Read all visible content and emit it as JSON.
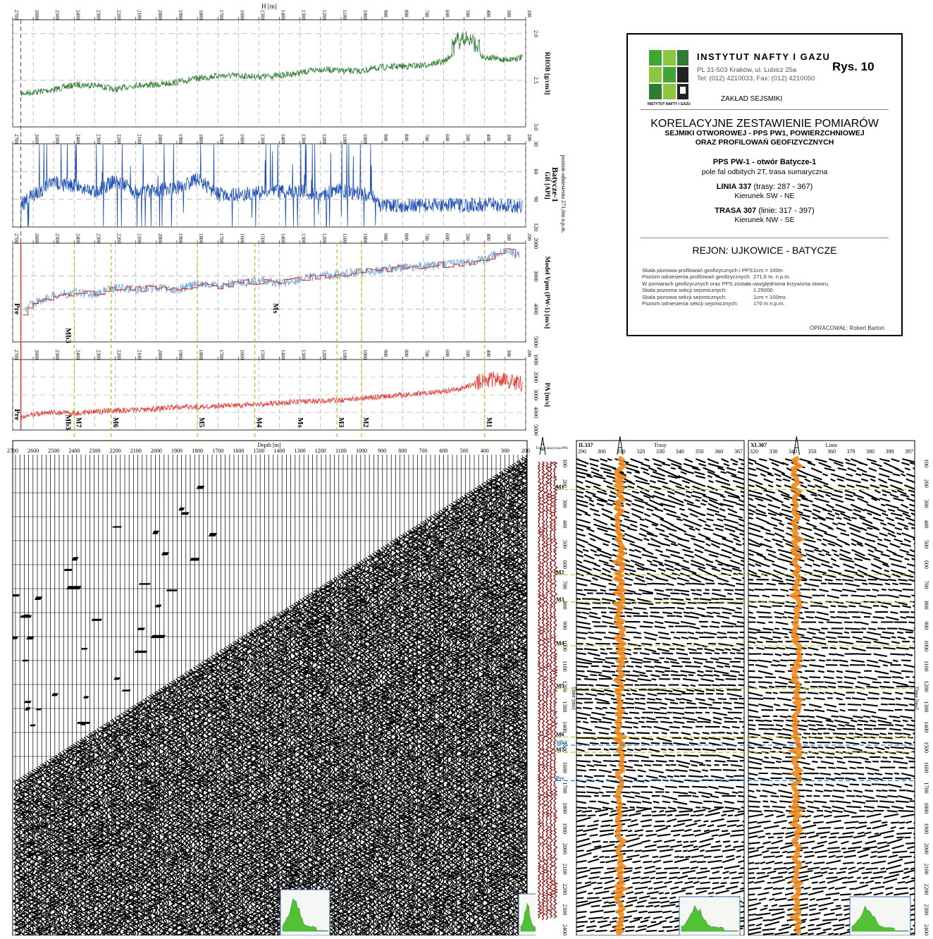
{
  "logs": {
    "h_label": "H [m]",
    "depth_ticks": [
      "2700",
      "2600",
      "2500",
      "2400",
      "2300",
      "2200",
      "2100",
      "2000",
      "1900",
      "1800",
      "1700",
      "1600",
      "1500",
      "1400",
      "1300",
      "1200",
      "1100",
      "1000",
      "900",
      "800",
      "700",
      "600",
      "500",
      "400",
      "300",
      "200"
    ],
    "well_name": "Batycze-1",
    "well_ref": "poziom odniesienia 271,6m n.p.m.",
    "tracks": [
      {
        "key": "rhob",
        "label": "RHOB [g/cm3]",
        "ticks": [
          "2.0",
          "2.5",
          "3.0"
        ],
        "range": [
          1.85,
          3.0
        ],
        "color": "#2e7d32"
      },
      {
        "key": "gr",
        "label": "GR [API]",
        "ticks": [
          "30",
          "60",
          "90",
          "120"
        ],
        "range": [
          30,
          120
        ],
        "color": "#1f4fb5"
      },
      {
        "key": "vp",
        "label": "Model Vpm (PW-1) [m/s]",
        "ticks": [
          "2000",
          "3000",
          "4000",
          "5000"
        ],
        "range": [
          2000,
          5000
        ],
        "color": "#c62828",
        "color2": "#6fa8dc"
      },
      {
        "key": "pa",
        "label": "PA [m/s]",
        "ticks": [
          "1000",
          "2000",
          "3000",
          "4000",
          "5000"
        ],
        "range": [
          1000,
          5000
        ],
        "color": "#e53935"
      }
    ],
    "vp_markers": [
      "Pre",
      "Mb3",
      "Ms"
    ],
    "pa_markers": [
      "Pre",
      "Mb3",
      "M7",
      "M6",
      "M5",
      "M4",
      "Ms",
      "M3",
      "M2",
      "M1"
    ],
    "reflector_depths": {
      "M1": 400,
      "M2": 1000,
      "M3": 1120,
      "M4": 1520,
      "M5": 1800,
      "M6": 2220,
      "M7": 2400
    }
  },
  "seismic": {
    "depth_label": "Depth [m]",
    "depth_ticks": [
      "2700",
      "2600",
      "2500",
      "2400",
      "2300",
      "2200",
      "2100",
      "2000",
      "1900",
      "1800",
      "1700",
      "1600",
      "1500",
      "1400",
      "1300",
      "1200",
      "1100",
      "1000",
      "900",
      "800",
      "700",
      "600",
      "500",
      "400",
      "300",
      "200"
    ],
    "time_label": "Time [ms]",
    "time_ticks": [
      "100",
      "200",
      "300",
      "400",
      "500",
      "600",
      "700",
      "800",
      "900",
      "1000",
      "1100",
      "1200",
      "1300",
      "1400",
      "1500",
      "1600",
      "1700",
      "1800",
      "1900",
      "2000",
      "2100",
      "2200",
      "2300",
      "2400"
    ],
    "trace_label": "Trasa sumaryczna PPS",
    "il_title": "IL337",
    "il_axis": "Trasy",
    "il_ticks": [
      "290",
      "300",
      "310",
      "320",
      "330",
      "340",
      "350",
      "360",
      "367"
    ],
    "xl_title": "XL307",
    "xl_axis": "Linie",
    "xl_ticks": [
      "320",
      "330",
      "340",
      "350",
      "360",
      "370",
      "380",
      "390",
      "397"
    ],
    "horizons": [
      "M1",
      "M2",
      "M3",
      "M4",
      "M5",
      "M6",
      "M7",
      "Mb3",
      "Pre"
    ]
  },
  "colors": {
    "ink": "#000000",
    "rhob": "#2e7d32",
    "gr": "#1f4fb5",
    "vp_model": "#c62828",
    "vp_raw": "#6fa8dc",
    "pa": "#e53935",
    "horizon": "#b8c21a",
    "horizon_blue": "#1a73c9",
    "well_strip": "#8b1a1a",
    "well_overlay": "#f08a1e",
    "histogram": "#52c234"
  },
  "info": {
    "institute": "INSTYTUT NAFTY I GAZU",
    "address": "PL 31-503 Kraków, ul. Lubicz 25a",
    "phone": "Tel: (012) 4210033, Fax: (012) 4210050",
    "logo_caption": "INSTYTUT NAFTY I GAZU",
    "figure": "Rys. 10",
    "department": "ZAKŁAD SEJSMIKI",
    "title": "KORELACYJNE ZESTAWIENIE POMIARÓW",
    "subtitle1": "SEJMIKI OTWOROWEJ - PPS PW1, POWIERZCHNIOWEJ",
    "subtitle2": "ORAZ PROFILOWAŃ GEOFIZYCZNYCH",
    "pps_line1": "PPS PW-1 - otwór Batycze-1",
    "pps_line2": "pole fal odbitych 2T, trasa sumaryczna",
    "linia_bold": "LINIA 337",
    "linia_rest": " (trasy: 287 - 367)",
    "linia_dir": "Kierunek SW - NE",
    "trasa_bold": "TRASA 307",
    "trasa_rest": " (linie: 317 - 397)",
    "trasa_dir": "Kierunek NW - SE",
    "region": "REJON: UJKOWICE - BATYCZE",
    "scale1_k": "Skala pionowa profilowań geofizycznych i PPS:",
    "scale1_v": "1cm = 100m",
    "scale2_k": "Poziom odniesienia profilowań geofizycznych:",
    "scale2_v": "271,6 m. n.p.m.",
    "scale3": "W pomiarach geofizycznych oraz PPS została uwzględniona krzywizna otworu.",
    "scale4_k": "Skala pozioma sekcji sejsmicznych:",
    "scale4_v": "1:25000",
    "scale5_k": "Skala pionowa sekcji sejsmicznych:",
    "scale5_v": "1cm = 100ms",
    "scale6_k": "Poziom odniesienia sekcji sejsmicznych:",
    "scale6_v": "170 m  n.p.m.",
    "author": "OPRACOWAŁ:  Robert Bartoń"
  },
  "chart_data": [
    {
      "type": "line",
      "title": "",
      "xlabel": "H [m]",
      "ylabel": "RHOB [g/cm3]",
      "xlim": [
        2700,
        200
      ],
      "ylim": [
        2.0,
        3.0
      ],
      "x": [
        2650,
        2500,
        2400,
        2300,
        2200,
        2100,
        2000,
        1900,
        1800,
        1700,
        1600,
        1500,
        1400,
        1300,
        1200,
        1100,
        1000,
        900,
        800,
        700,
        600,
        500,
        450,
        400,
        300,
        200
      ],
      "values": [
        2.64,
        2.6,
        2.55,
        2.55,
        2.6,
        2.55,
        2.55,
        2.52,
        2.48,
        2.45,
        2.45,
        2.46,
        2.45,
        2.42,
        2.38,
        2.4,
        2.4,
        2.36,
        2.35,
        2.34,
        2.3,
        2.12,
        2.2,
        2.25,
        2.28,
        2.25
      ]
    },
    {
      "type": "line",
      "title": "",
      "xlabel": "H [m]",
      "ylabel": "GR [API]",
      "xlim": [
        2700,
        200
      ],
      "ylim": [
        30,
        120
      ],
      "x": [
        2650,
        2600,
        2500,
        2400,
        2300,
        2200,
        2100,
        2000,
        1900,
        1800,
        1700,
        1600,
        1500,
        1400,
        1300,
        1200,
        1100,
        1000,
        950,
        900,
        800,
        700,
        600,
        500,
        400,
        300,
        200
      ],
      "values": [
        95,
        85,
        72,
        75,
        82,
        70,
        82,
        80,
        78,
        68,
        85,
        85,
        83,
        82,
        80,
        85,
        80,
        85,
        85,
        98,
        97,
        97,
        96,
        97,
        95,
        97,
        98
      ]
    },
    {
      "type": "line",
      "title": "",
      "xlabel": "H [m]",
      "ylabel": "Model Vpm (PW-1) [m/s]",
      "xlim": [
        2700,
        200
      ],
      "ylim": [
        2000,
        5000
      ],
      "x": [
        2650,
        2600,
        2500,
        2400,
        2300,
        2200,
        2100,
        2000,
        1900,
        1800,
        1700,
        1600,
        1500,
        1400,
        1300,
        1200,
        1100,
        1000,
        900,
        800,
        700,
        600,
        500,
        400,
        350,
        300,
        250
      ],
      "values": [
        4100,
        3800,
        3600,
        3500,
        3550,
        3350,
        3400,
        3350,
        3400,
        3250,
        3300,
        3200,
        3150,
        3200,
        3100,
        3000,
        2950,
        2850,
        2800,
        2750,
        2700,
        2650,
        2600,
        2500,
        2350,
        2200,
        2350
      ]
    },
    {
      "type": "line",
      "title": "",
      "xlabel": "H [m]",
      "ylabel": "PA [m/s]",
      "xlim": [
        2700,
        200
      ],
      "ylim": [
        1000,
        5000
      ],
      "x": [
        2650,
        2600,
        2500,
        2400,
        2300,
        2200,
        2100,
        2000,
        1900,
        1800,
        1700,
        1600,
        1500,
        1400,
        1300,
        1200,
        1100,
        1000,
        900,
        800,
        700,
        600,
        500,
        400,
        300,
        200
      ],
      "values": [
        4300,
        4100,
        4000,
        4050,
        3950,
        3900,
        3850,
        3800,
        3700,
        3700,
        3650,
        3600,
        3550,
        3450,
        3400,
        3350,
        3300,
        3200,
        3100,
        3000,
        2900,
        2800,
        2600,
        2100,
        2200,
        2400
      ]
    }
  ]
}
